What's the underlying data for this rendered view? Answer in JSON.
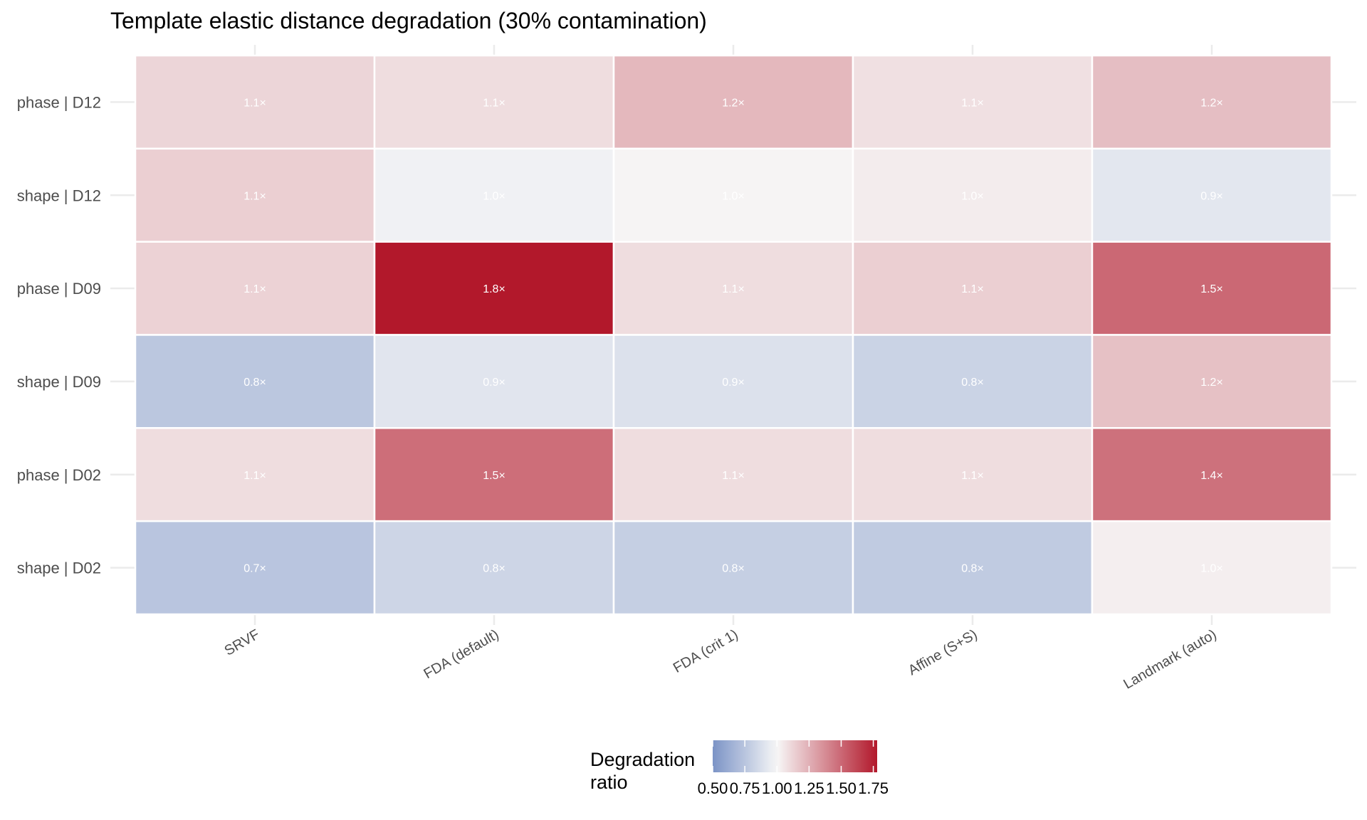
{
  "chart_data": {
    "type": "heatmap",
    "title": "Template elastic distance degradation (30% contamination)",
    "xlabel": "",
    "ylabel": "",
    "x_categories": [
      "SRVF",
      "FDA (default)",
      "FDA (crit 1)",
      "Affine (S+S)",
      "Landmark (auto)"
    ],
    "y_categories": [
      "phase | D12",
      "shape | D12",
      "phase | D09",
      "shape | D09",
      "phase | D02",
      "shape | D02"
    ],
    "values": [
      [
        1.1,
        1.1,
        1.2,
        1.1,
        1.2
      ],
      [
        1.1,
        1.0,
        1.0,
        1.0,
        0.9
      ],
      [
        1.1,
        1.8,
        1.1,
        1.1,
        1.5
      ],
      [
        0.8,
        0.9,
        0.9,
        0.8,
        1.2
      ],
      [
        1.1,
        1.5,
        1.1,
        1.1,
        1.4
      ],
      [
        0.7,
        0.8,
        0.8,
        0.8,
        1.0
      ]
    ],
    "fill_values": [
      [
        1.12,
        1.09,
        1.22,
        1.08,
        1.2
      ],
      [
        1.14,
        0.97,
        1.01,
        1.04,
        0.92
      ],
      [
        1.13,
        1.78,
        1.09,
        1.14,
        1.5
      ],
      [
        0.76,
        0.91,
        0.89,
        0.82,
        1.19
      ],
      [
        1.09,
        1.48,
        1.09,
        1.09,
        1.47
      ],
      [
        0.75,
        0.83,
        0.8,
        0.78,
        1.03
      ]
    ],
    "label_suffix": "×",
    "legend": {
      "title_lines": [
        "Degradation",
        "ratio"
      ],
      "ticks": [
        0.5,
        0.75,
        1.0,
        1.25,
        1.5,
        1.75
      ],
      "tick_labels": [
        "0.50",
        "0.75",
        "1.00",
        "1.25",
        "1.50",
        "1.75"
      ],
      "range": [
        0.5,
        1.78
      ],
      "midpoint": 1.0,
      "placement": "bottom"
    },
    "colors": {
      "low": "#7b93c6",
      "mid": "#f7f7f7",
      "high": "#b2182b"
    },
    "grid": true
  }
}
